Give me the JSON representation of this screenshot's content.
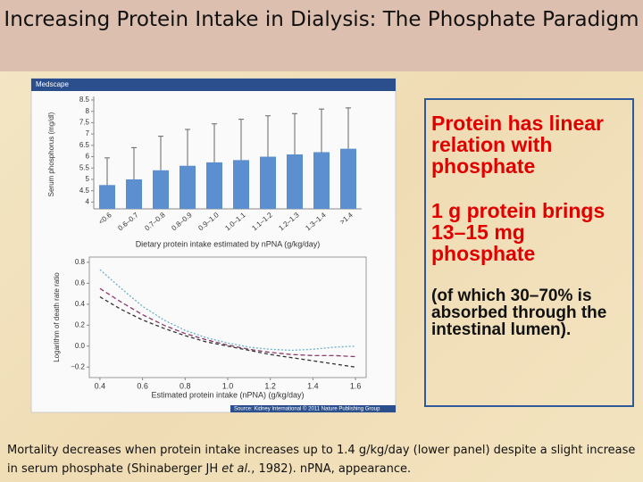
{
  "slide": {
    "title": "Increasing Protein Intake in Dialysis: The Phosphate Paradigm",
    "figure_header": "Medscape",
    "figure_source": "Source: Kidney International © 2011 Nature Publishing Group",
    "points": [
      "Protein has linear relation with phosphate",
      "1 g protein brings 13–15 mg phosphate",
      "(of which 30–70% is absorbed through the intestinal lumen)."
    ],
    "caption": [
      "Mortality decreases when protein intake increases up to 1.4 g/kg/day (lower panel) despite a slight increase in serum phosphate (Shinaberger JH ",
      "et al.",
      ", 1982). nPNA, appearance."
    ]
  },
  "chart_data": [
    {
      "type": "bar",
      "y_label": "Serum phosphorus (mg/dl)",
      "x_label": "Dietary protein intake estimated by nPNA (g/kg/day)",
      "categories": [
        "<0.6",
        "0.6–0.7",
        "0.7–0.8",
        "0.8–0.9",
        "0.9–1.0",
        "1.0–1.1",
        "1.1–1.2",
        "1.2–1.3",
        "1.3–1.4",
        ">1.4"
      ],
      "values": [
        4.75,
        5.0,
        5.4,
        5.6,
        5.75,
        5.85,
        6.0,
        6.1,
        6.2,
        6.35
      ],
      "errors": [
        1.2,
        1.4,
        1.5,
        1.6,
        1.7,
        1.8,
        1.8,
        1.8,
        1.9,
        1.8
      ],
      "color": "#5b8fd0",
      "ylim": [
        3.7,
        8.5
      ],
      "yticks": [
        4,
        4.5,
        5,
        5.5,
        6,
        6.5,
        7,
        7.5,
        8,
        8.5
      ]
    },
    {
      "type": "line",
      "y_label": "Logarithm of death rate ratio",
      "x_label": "Estimated protein intake (nPNA) (g/kg/day)",
      "x": [
        0.4,
        0.5,
        0.6,
        0.7,
        0.8,
        0.9,
        1.0,
        1.1,
        1.2,
        1.3,
        1.4,
        1.5,
        1.6
      ],
      "series": [
        {
          "color": "#6ab0c8",
          "values": [
            0.73,
            0.55,
            0.38,
            0.25,
            0.15,
            0.08,
            0.03,
            -0.01,
            -0.03,
            -0.04,
            -0.03,
            -0.01,
            0.0
          ]
        },
        {
          "color": "#8a3a6a",
          "values": [
            0.55,
            0.42,
            0.3,
            0.2,
            0.12,
            0.06,
            0.01,
            -0.03,
            -0.06,
            -0.08,
            -0.09,
            -0.09,
            -0.1
          ]
        },
        {
          "color": "#333333",
          "values": [
            0.47,
            0.35,
            0.25,
            0.17,
            0.1,
            0.04,
            0.0,
            -0.04,
            -0.08,
            -0.11,
            -0.14,
            -0.17,
            -0.2
          ]
        }
      ],
      "xlim": [
        0.35,
        1.65
      ],
      "ylim": [
        -0.3,
        0.85
      ],
      "xticks": [
        0.4,
        0.6,
        0.8,
        {
          "value": 1,
          "label": "1.0"
        },
        1.2,
        1.4,
        1.6
      ],
      "yticks": [
        {
          "value": -0.2,
          "label": "−0.2"
        },
        {
          "value": 0,
          "label": "0.0"
        },
        0.2,
        0.4,
        0.6,
        0.8
      ]
    }
  ]
}
